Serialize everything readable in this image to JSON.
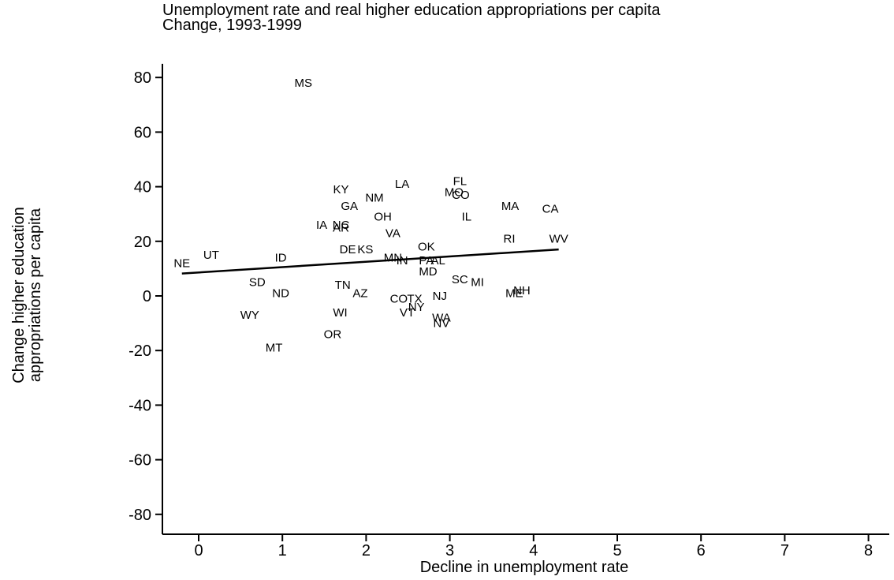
{
  "chart_data": {
    "type": "scatter",
    "title": "Unemployment rate and real higher education appropriations per capita",
    "subtitle": "Change, 1993-1999",
    "xlabel": "Decline in unemployment rate",
    "ylabel_lines": [
      "Change higher education",
      "appropriations per capita"
    ],
    "xlim": [
      -0.4,
      8.2
    ],
    "ylim": [
      -85,
      85
    ],
    "xticks": [
      0,
      1,
      2,
      3,
      4,
      5,
      6,
      7,
      8
    ],
    "yticks": [
      80,
      60,
      40,
      20,
      0,
      -20,
      -40,
      -60,
      -80
    ],
    "grid": false,
    "fit_line": {
      "x": [
        -0.2,
        4.3
      ],
      "y": [
        8.2,
        17.0
      ]
    },
    "points": [
      {
        "label": "MS",
        "x": 1.25,
        "y": 78
      },
      {
        "label": "FL",
        "x": 3.12,
        "y": 42
      },
      {
        "label": "LA",
        "x": 2.43,
        "y": 41
      },
      {
        "label": "KY",
        "x": 1.7,
        "y": 39
      },
      {
        "label": "MO",
        "x": 3.05,
        "y": 38
      },
      {
        "label": "CO",
        "x": 3.13,
        "y": 37
      },
      {
        "label": "NM",
        "x": 2.1,
        "y": 36
      },
      {
        "label": "GA",
        "x": 1.8,
        "y": 33
      },
      {
        "label": "MA",
        "x": 3.72,
        "y": 33
      },
      {
        "label": "CA",
        "x": 4.2,
        "y": 32
      },
      {
        "label": "IL",
        "x": 3.2,
        "y": 29
      },
      {
        "label": "OH",
        "x": 2.2,
        "y": 29
      },
      {
        "label": "IA",
        "x": 1.47,
        "y": 26
      },
      {
        "label": "NC",
        "x": 1.7,
        "y": 26
      },
      {
        "label": "AR",
        "x": 1.7,
        "y": 25
      },
      {
        "label": "VA",
        "x": 2.32,
        "y": 23
      },
      {
        "label": "RI",
        "x": 3.71,
        "y": 21
      },
      {
        "label": "WV",
        "x": 4.3,
        "y": 21
      },
      {
        "label": "OK",
        "x": 2.72,
        "y": 18
      },
      {
        "label": "DE",
        "x": 1.78,
        "y": 17
      },
      {
        "label": "KS",
        "x": 1.99,
        "y": 17
      },
      {
        "label": "UT",
        "x": 0.15,
        "y": 15
      },
      {
        "label": "ID",
        "x": 0.98,
        "y": 14
      },
      {
        "label": "MN",
        "x": 2.32,
        "y": 14
      },
      {
        "label": "IN",
        "x": 2.43,
        "y": 13
      },
      {
        "label": "PA",
        "x": 2.72,
        "y": 13
      },
      {
        "label": "AL",
        "x": 2.86,
        "y": 13
      },
      {
        "label": "NE",
        "x": -0.2,
        "y": 12
      },
      {
        "label": "MD",
        "x": 2.74,
        "y": 9
      },
      {
        "label": "SD",
        "x": 0.7,
        "y": 5
      },
      {
        "label": "SC",
        "x": 3.12,
        "y": 6
      },
      {
        "label": "MI",
        "x": 3.33,
        "y": 5
      },
      {
        "label": "TN",
        "x": 1.72,
        "y": 4
      },
      {
        "label": "AZ",
        "x": 1.93,
        "y": 1
      },
      {
        "label": "ND",
        "x": 0.98,
        "y": 1
      },
      {
        "label": "NH",
        "x": 3.86,
        "y": 2
      },
      {
        "label": "ME",
        "x": 3.77,
        "y": 1
      },
      {
        "label": "NJ",
        "x": 2.88,
        "y": 0
      },
      {
        "label": "CO",
        "x": 2.39,
        "y": -1
      },
      {
        "label": "TX",
        "x": 2.58,
        "y": -1
      },
      {
        "label": "NY",
        "x": 2.6,
        "y": -4
      },
      {
        "label": "WI",
        "x": 1.69,
        "y": -6
      },
      {
        "label": "VT",
        "x": 2.49,
        "y": -6
      },
      {
        "label": "WY",
        "x": 0.61,
        "y": -7
      },
      {
        "label": "WA",
        "x": 2.9,
        "y": -8
      },
      {
        "label": "NV",
        "x": 2.9,
        "y": -10
      },
      {
        "label": "OR",
        "x": 1.6,
        "y": -14
      },
      {
        "label": "MT",
        "x": 0.9,
        "y": -19
      }
    ]
  }
}
